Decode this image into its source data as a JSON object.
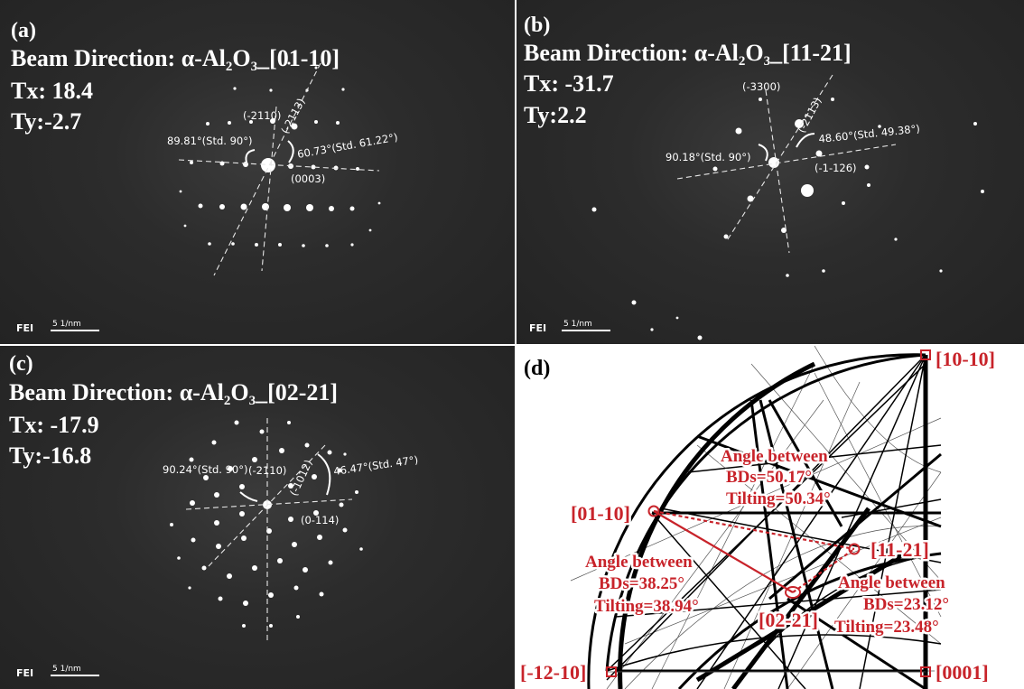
{
  "panel_a": {
    "label": "(a)",
    "beam_prefix": "Beam Direction: α-Al",
    "sub1": "2",
    "mid": "O",
    "sub2": "3",
    "beam_suffix": "_[01-10]",
    "tx": "Tx: 18.4",
    "ty": "Ty:-2.7",
    "ann": {
      "p1": "(-2110)",
      "p2": "(-2113)",
      "p3": "(0003)",
      "angle_left": "89.81°(Std. 90°)",
      "angle_right": "60.73°(Std. 61.22°)"
    },
    "scale_text": "5 1/nm",
    "logo": "FEI"
  },
  "panel_b": {
    "label": "(b)",
    "beam_prefix": "Beam Direction: α-Al",
    "sub1": "2",
    "mid": "O",
    "sub2": "3",
    "beam_suffix": "_[11-21]",
    "tx": "Tx: -31.7",
    "ty": "Ty:2.2",
    "ann": {
      "p1": "(-3300)",
      "p2": "(-2113)",
      "p3": "(-1-126)",
      "angle_left": "90.18°(Std. 90°)",
      "angle_right": "48.60°(Std. 49.38°)"
    },
    "scale_text": "5 1/nm",
    "logo": "FEI"
  },
  "panel_c": {
    "label": "(c)",
    "beam_prefix": "Beam Direction: α-Al",
    "sub1": "2",
    "mid": "O",
    "sub2": "3",
    "beam_suffix": "_[02-21]",
    "tx": "Tx: -17.9",
    "ty": "Ty:-16.8",
    "ann": {
      "p1": "(-2110)",
      "p2": "(-1012)",
      "p3": "(0-114)",
      "angle_left": "90.24°(Std. 90°)",
      "angle_right": "46.47°(Std. 47°)"
    },
    "scale_text": "5 1/nm",
    "logo": "FEI"
  },
  "panel_d": {
    "label": "(d)",
    "poles": {
      "p1010": "[10-10]",
      "p0110": "[01-10]",
      "p1121": "[11-21]",
      "p0221": "[02-21]",
      "p1210": "[-12-10]",
      "p0001": "[0001]"
    },
    "box1": {
      "l1": "Angle between",
      "l2": "BDs=50.17°",
      "l3": "Tilting=50.34°"
    },
    "box2": {
      "l1": "Angle between",
      "l2": "BDs=38.25°",
      "l3": "Tilting=38.94°"
    },
    "box3": {
      "l1": "Angle between",
      "l2": "BDs=23.12°",
      "l3": "Tilting=23.48°"
    },
    "accent": "#c8232a"
  }
}
